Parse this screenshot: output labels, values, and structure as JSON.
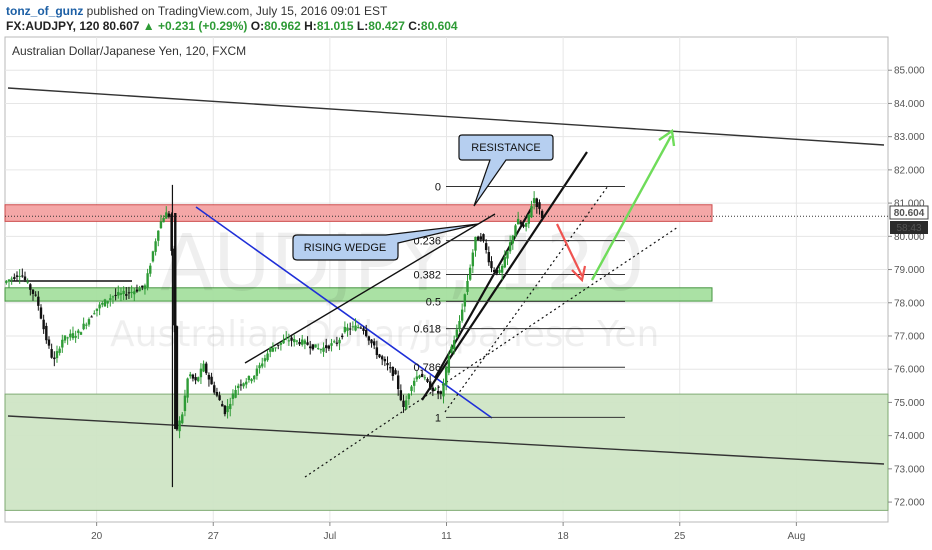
{
  "header": {
    "user": "tonz_of_gunz",
    "published": "published on TradingView.com, July 15, 2016 09:01 EST",
    "symbol": "FX:AUDJPY, 120",
    "last": "80.607",
    "change_arrow": "▲",
    "change": "+0.231 (+0.29%)",
    "o_label": "O:",
    "o_value": "80.962",
    "h_label": "H:",
    "h_value": "81.015",
    "l_label": "L:",
    "l_value": "80.427",
    "c_label": "C:",
    "c_value": "80.604"
  },
  "plot_title": "Australian Dollar/Japanese Yen, 120, FXCM",
  "watermark": {
    "symbol": "AUDJPY, 120",
    "name": "Australian Dollar/Japanese Yen"
  },
  "price_labels": {
    "current": "80.604",
    "countdown": "58:43"
  },
  "annotations": {
    "resistance": "RESISTANCE",
    "rising_wedge": "RISING WEDGE"
  },
  "colors": {
    "red_zone": "#f4a3a3",
    "green_zone": "#a6e0a0",
    "green_box": "#cfe5c6",
    "blue_line": "#1f2fd8",
    "red_arrow": "#ef5350",
    "green_arrow": "#6fdc5a",
    "candle_up": "#2e9b36",
    "candle_down": "#111111"
  },
  "chart_data": {
    "type": "candlestick",
    "title": "Australian Dollar/Japanese Yen, 120, FXCM",
    "ylim": [
      71.4,
      86.0
    ],
    "y_ticks": [
      "85.000",
      "84.000",
      "83.000",
      "82.000",
      "81.000",
      "80.000",
      "79.000",
      "78.000",
      "77.000",
      "76.000",
      "75.000",
      "74.000",
      "73.000",
      "72.000"
    ],
    "y_tick_values": [
      85,
      84,
      83,
      82,
      81,
      80,
      79,
      78,
      77,
      76,
      75,
      74,
      73,
      72
    ],
    "x_ticks": [
      "20",
      "27",
      "Jul",
      "11",
      "18",
      "25",
      "Aug"
    ],
    "x_tick_days": [
      20,
      27,
      34,
      41,
      48,
      55,
      62
    ],
    "xlim_days": [
      14.5,
      67.5
    ],
    "grid": true,
    "price_path": [
      [
        14.5,
        78.6
      ],
      [
        15.5,
        78.9
      ],
      [
        16.5,
        78.1
      ],
      [
        17.0,
        77.0
      ],
      [
        17.5,
        76.2
      ],
      [
        18.0,
        76.9
      ],
      [
        19.0,
        77.1
      ],
      [
        20.0,
        77.8
      ],
      [
        21.0,
        78.2
      ],
      [
        22.0,
        78.3
      ],
      [
        23.0,
        78.5
      ],
      [
        23.8,
        80.3
      ],
      [
        24.2,
        80.7
      ],
      [
        24.5,
        80.6
      ],
      [
        24.7,
        78.0
      ],
      [
        24.9,
        74.2
      ],
      [
        25.2,
        74.6
      ],
      [
        25.6,
        75.9
      ],
      [
        26.0,
        75.6
      ],
      [
        26.5,
        76.1
      ],
      [
        27.0,
        75.5
      ],
      [
        27.8,
        74.7
      ],
      [
        28.5,
        75.5
      ],
      [
        29.5,
        75.8
      ],
      [
        30.5,
        76.6
      ],
      [
        31.5,
        76.9
      ],
      [
        32.5,
        76.8
      ],
      [
        33.5,
        76.6
      ],
      [
        34.5,
        76.8
      ],
      [
        35.0,
        77.2
      ],
      [
        36.0,
        77.3
      ],
      [
        37.0,
        76.4
      ],
      [
        38.0,
        75.8
      ],
      [
        38.5,
        74.8
      ],
      [
        39.0,
        75.6
      ],
      [
        39.5,
        75.9
      ],
      [
        40.0,
        75.5
      ],
      [
        40.8,
        75.2
      ],
      [
        41.2,
        76.4
      ],
      [
        41.8,
        77.3
      ],
      [
        42.2,
        78.3
      ],
      [
        42.8,
        79.9
      ],
      [
        43.2,
        80.0
      ],
      [
        43.8,
        79.0
      ],
      [
        44.3,
        78.9
      ],
      [
        44.8,
        79.6
      ],
      [
        45.3,
        80.5
      ],
      [
        45.8,
        80.2
      ],
      [
        46.3,
        81.2
      ],
      [
        46.8,
        80.6
      ]
    ],
    "zones": [
      {
        "name": "resistance zone",
        "y0": 80.45,
        "y1": 80.95
      },
      {
        "name": "support zone",
        "y0": 78.05,
        "y1": 78.45
      },
      {
        "name": "demand box",
        "y0": 71.75,
        "y1": 75.25
      }
    ],
    "fibonacci": [
      {
        "label": "0",
        "value": 81.5
      },
      {
        "label": "0.236",
        "value": 79.87
      },
      {
        "label": "0.382",
        "value": 78.85
      },
      {
        "label": "0.5",
        "value": 78.04
      },
      {
        "label": "0.618",
        "value": 77.22
      },
      {
        "label": "0.786",
        "value": 76.06
      },
      {
        "label": "1",
        "value": 74.55
      }
    ]
  }
}
